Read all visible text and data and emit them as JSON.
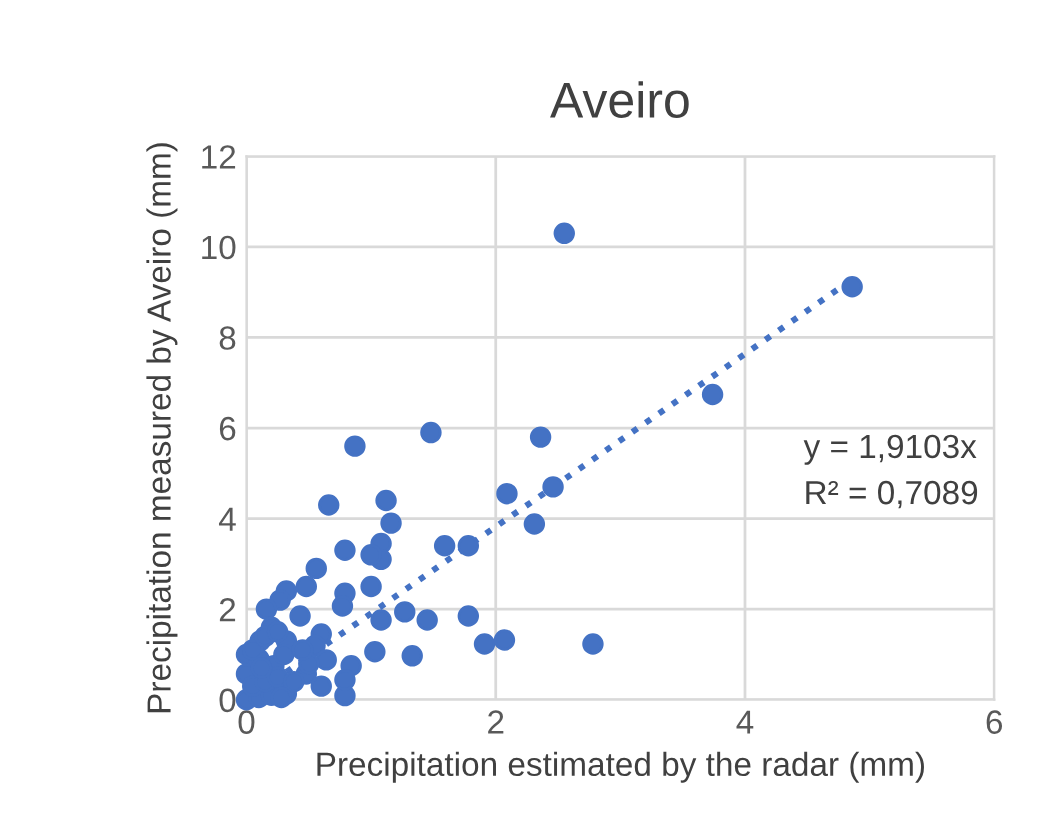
{
  "chart_data": {
    "type": "scatter",
    "title": "Aveiro",
    "xlabel": "Precipitation estimated by the radar (mm)",
    "ylabel": "Precipitation measured by Aveiro (mm)",
    "xlim": [
      0,
      6
    ],
    "xticks": [
      0,
      2,
      4,
      6
    ],
    "ylim": [
      0,
      12
    ],
    "yticks": [
      0,
      2,
      4,
      6,
      8,
      10,
      12
    ],
    "grid": true,
    "annotations": [
      "y = 1,9103x",
      "R² = 0,7089"
    ],
    "series": [
      {
        "color": "#4472c4",
        "marker": "circle",
        "x": [
          2.55,
          4.86,
          3.74,
          1.48,
          2.36,
          2.46,
          2.09,
          2.31,
          1.12,
          1.16,
          1.08,
          1.08,
          1.0,
          1.59,
          1.78,
          1.0,
          1.08,
          1.27,
          1.45,
          1.78,
          1.03,
          1.33,
          1.91,
          2.07,
          2.78,
          0.87,
          0.66,
          0.79,
          0.56,
          0.79,
          0.77,
          0.32,
          0.48,
          0.27,
          0.16,
          0.43,
          0.6,
          0.84,
          0.79,
          0.79,
          0.11,
          0.0,
          0.32,
          0.55,
          0.64,
          0.48,
          0.6,
          0.32,
          0.0,
          0.22,
          0.0,
          0.1,
          0.2,
          0.05,
          0.15,
          0.25,
          0.5,
          0.2,
          0.1,
          0.3,
          0.05,
          0.15,
          0.25,
          0.45,
          0.12,
          0.38,
          0.28
        ],
        "values": [
          10.3,
          9.12,
          6.74,
          5.9,
          5.8,
          4.7,
          4.55,
          3.88,
          4.4,
          3.9,
          3.45,
          3.1,
          3.2,
          3.4,
          3.4,
          2.5,
          1.76,
          1.94,
          1.76,
          1.85,
          1.06,
          0.97,
          1.23,
          1.32,
          1.23,
          5.6,
          4.3,
          3.3,
          2.9,
          2.35,
          2.07,
          2.4,
          2.5,
          2.2,
          2.0,
          1.85,
          1.45,
          0.75,
          0.09,
          0.44,
          1.3,
          1.0,
          1.3,
          1.2,
          0.88,
          0.57,
          0.3,
          0.13,
          0.57,
          0.75,
          0.0,
          0.05,
          0.1,
          0.3,
          0.4,
          0.5,
          0.8,
          1.6,
          0.9,
          1.0,
          1.1,
          1.4,
          1.5,
          1.1,
          0.7,
          0.4,
          0.05
        ]
      },
      {
        "type": "line",
        "line_style": "dotted",
        "color": "#4472c4",
        "x": [
          0,
          4.86
        ],
        "values": [
          0,
          9.28
        ]
      }
    ]
  }
}
